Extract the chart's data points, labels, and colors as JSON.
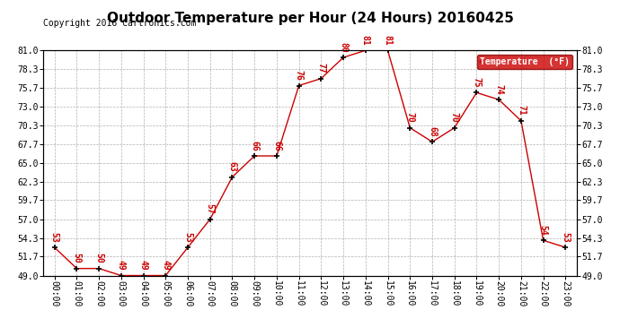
{
  "title": "Outdoor Temperature per Hour (24 Hours) 20160425",
  "copyright_text": "Copyright 2016 Cartronics.com",
  "legend_label": "Temperature  (°F)",
  "hours": [
    0,
    1,
    2,
    3,
    4,
    5,
    6,
    7,
    8,
    9,
    10,
    11,
    12,
    13,
    14,
    15,
    16,
    17,
    18,
    19,
    20,
    21,
    22,
    23
  ],
  "hour_labels": [
    "00:00",
    "01:00",
    "02:00",
    "03:00",
    "04:00",
    "05:00",
    "06:00",
    "07:00",
    "08:00",
    "09:00",
    "10:00",
    "11:00",
    "12:00",
    "13:00",
    "14:00",
    "15:00",
    "16:00",
    "17:00",
    "18:00",
    "19:00",
    "20:00",
    "21:00",
    "22:00",
    "23:00"
  ],
  "temperatures": [
    53,
    50,
    50,
    49,
    49,
    49,
    53,
    57,
    63,
    66,
    66,
    76,
    77,
    80,
    81,
    81,
    70,
    68,
    70,
    75,
    74,
    71,
    54,
    53
  ],
  "ylim": [
    49.0,
    81.0
  ],
  "yticks": [
    49.0,
    51.7,
    54.3,
    57.0,
    59.7,
    62.3,
    65.0,
    67.7,
    70.3,
    73.0,
    75.7,
    78.3,
    81.0
  ],
  "line_color": "#cc0000",
  "marker_color": "#000000",
  "label_color": "#cc0000",
  "bg_color": "#ffffff",
  "grid_color": "#b0b0b0",
  "title_fontsize": 11,
  "label_fontsize": 7,
  "tick_fontsize": 7,
  "copyright_fontsize": 7,
  "legend_bg": "#cc0000",
  "legend_text_color": "#ffffff"
}
